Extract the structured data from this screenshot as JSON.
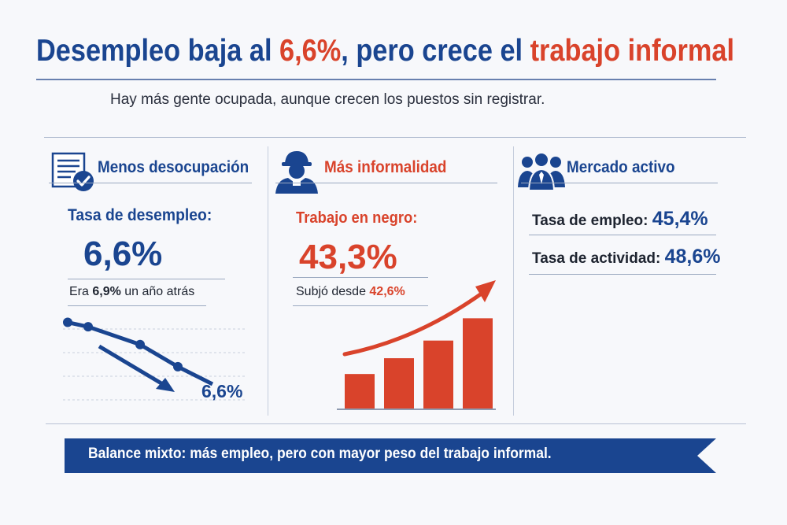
{
  "header": {
    "title_part1": "Desempleo baja al ",
    "title_hl1": "6,6%",
    "title_part2": ", pero crece el ",
    "title_hl2": "trabajo informal",
    "subtitle": "Hay más gente ocupada, aunque crecen los puestos sin registrar."
  },
  "colors": {
    "primary_blue": "#1a4590",
    "accent_red": "#d9432b",
    "text_dark": "#1e2430"
  },
  "sections": {
    "unemployment": {
      "icon": "document-check-icon",
      "title": "Menos desocupación",
      "label": "Tasa de desempleo:",
      "value": "6,6%",
      "note_prefix": "Era ",
      "note_value": "6,9%",
      "note_suffix": " un año atrás",
      "trend_end_label": "6,6%",
      "trend_levels": [
        0.92,
        0.86,
        0.62,
        0.32
      ]
    },
    "informality": {
      "icon": "worker-cap-icon",
      "title": "Más informalidad",
      "label": "Trabajo en negro:",
      "value": "43,3%",
      "note_prefix": "Subjó desde ",
      "note_value": "42,6%",
      "bar_levels": [
        0.38,
        0.55,
        0.74,
        0.98
      ]
    },
    "market": {
      "icon": "group-people-icon",
      "title": "Mercado activo",
      "rows": [
        {
          "label": "Tasa de empleo: ",
          "value": "45,4%"
        },
        {
          "label": "Tasa de actividad: ",
          "value": "48,6%"
        }
      ]
    }
  },
  "banner": {
    "text": "Balance mixto: más empleo, pero con mayor peso del trabajo informal."
  }
}
